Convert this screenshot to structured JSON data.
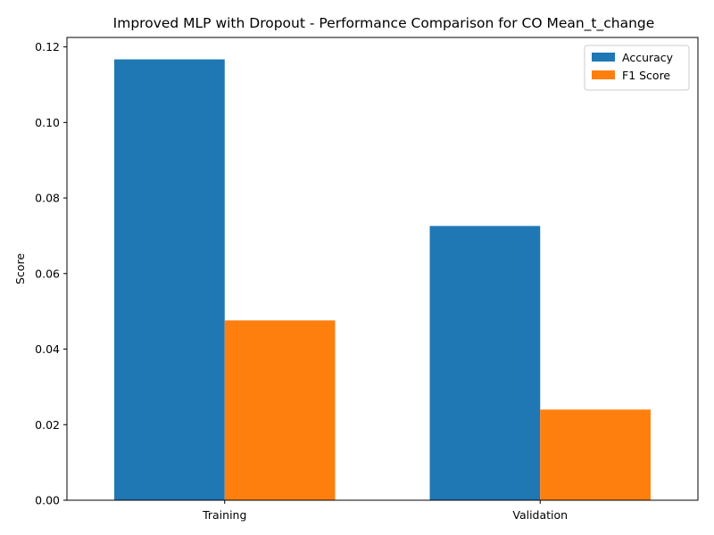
{
  "chart_data": {
    "type": "bar",
    "title": "Improved MLP with Dropout - Performance Comparison for CO Mean_t_change",
    "xlabel": "",
    "ylabel": "Score",
    "categories": [
      "Training",
      "Validation"
    ],
    "series": [
      {
        "name": "Accuracy",
        "color": "#1f77b4",
        "values": [
          0.1167,
          0.0726
        ]
      },
      {
        "name": "F1 Score",
        "color": "#ff7f0e",
        "values": [
          0.0476,
          0.024
        ]
      }
    ],
    "ylim": [
      0,
      0.1225
    ],
    "yticks": [
      0.0,
      0.02,
      0.04,
      0.06,
      0.08,
      0.1,
      0.12
    ],
    "ytick_labels": [
      "0.00",
      "0.02",
      "0.04",
      "0.06",
      "0.08",
      "0.10",
      "0.12"
    ],
    "grid": false,
    "legend_position": "top-right"
  }
}
